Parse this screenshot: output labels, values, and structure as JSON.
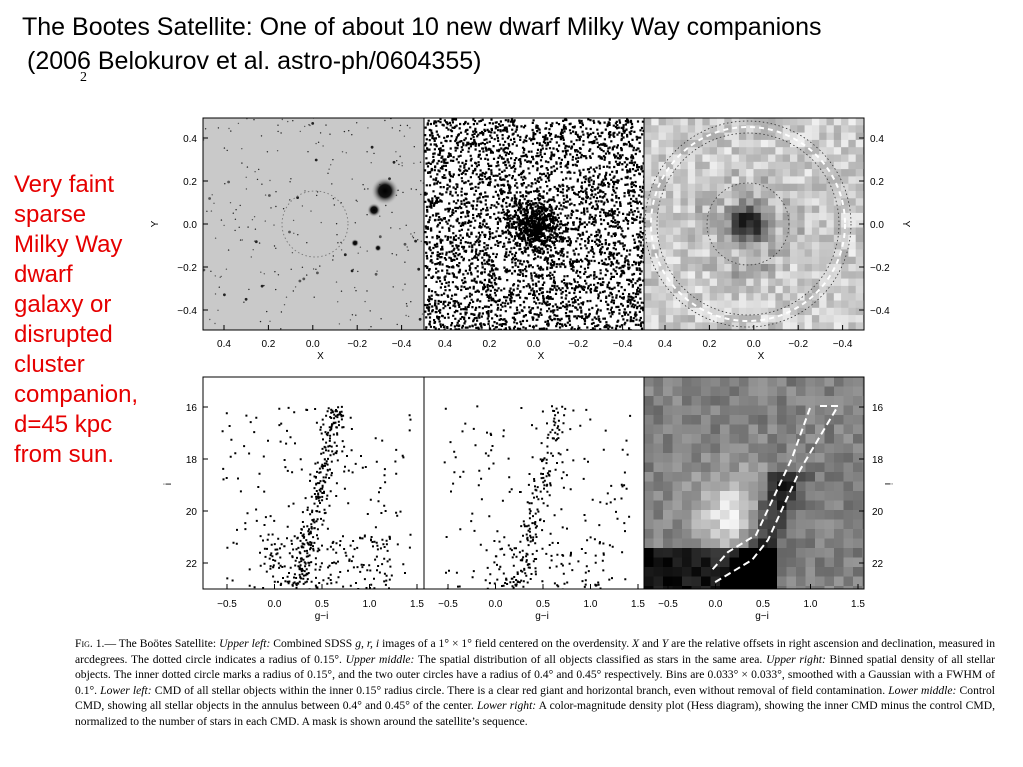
{
  "slide": {
    "title_line1": "The Bootes Satellite: One of about 10 new dwarf Milky Way companions",
    "title_line2": "(2006 Belokurov et al. astro-ph/0604355)",
    "subscript": "2",
    "side_lines": [
      "Very faint",
      "sparse",
      "Milky Way",
      "dwarf",
      "galaxy or",
      "disrupted",
      "cluster",
      "companion,",
      "d=45 kpc",
      "from sun."
    ],
    "accent_color": "#e60000"
  },
  "figure": {
    "top_x_ticks": [
      "0.4",
      "0.2",
      "0.0",
      "−0.2",
      "−0.4"
    ],
    "top_y_ticks": [
      "0.4",
      "0.2",
      "0.0",
      "−0.2",
      "−0.4"
    ],
    "top_xlabel": "X",
    "top_ylabel": "Y",
    "bottom_x_ticks": [
      "−0.5",
      "0.0",
      "0.5",
      "1.0",
      "1.5"
    ],
    "bottom_y_ticks": [
      "16",
      "18",
      "20",
      "22"
    ],
    "bottom_xlabel": "g−i",
    "bottom_ylabel": "i"
  },
  "caption": {
    "fig_label": "Fig. 1.",
    "p01": "— The Boötes Satellite: ",
    "i01": "Upper left:",
    "p02": " Combined SDSS ",
    "i02": "g, r, i",
    "p03": " images of a 1° × 1° field centered on the overdensity. ",
    "i03": "X",
    "p04": " and ",
    "i04": "Y",
    "p05": " are the relative offsets in right ascension and declination, measured in arcdegrees. The dotted circle indicates a radius of 0.15°. ",
    "i05": "Upper middle:",
    "p06": " The spatial distribution of all objects classified as stars in the same area. ",
    "i06": "Upper right:",
    "p07": " Binned spatial density of all stellar objects. The inner dotted circle marks a radius of 0.15°, and the two outer circles have a radius of 0.4° and 0.45° respectively. Bins are 0.033° × 0.033°, smoothed with a Gaussian with a FWHM of 0.1°. ",
    "i07": "Lower left:",
    "p08": " CMD of all stellar objects within the inner 0.15° radius circle. There is a clear red giant and horizontal branch, even without removal of field contamination. ",
    "i08": "Lower middle:",
    "p09": " Control CMD, showing all stellar objects in the annulus between 0.4° and 0.45° of the center. ",
    "i09": "Lower right:",
    "p10": " A color-magnitude density plot (Hess diagram), showing the inner CMD minus the control CMD, normalized to the number of stars in each CMD. A mask is shown around the satellite’s sequence."
  }
}
